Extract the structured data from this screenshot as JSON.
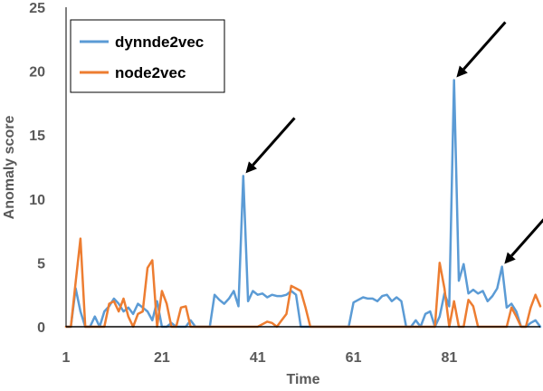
{
  "chart_data": {
    "type": "line",
    "title": "",
    "xlabel": "Time",
    "ylabel": "Anomaly score",
    "xlim": [
      1,
      100
    ],
    "ylim": [
      0,
      25
    ],
    "xticks": [
      1,
      21,
      41,
      61,
      81
    ],
    "yticks": [
      0,
      5,
      10,
      15,
      20,
      25
    ],
    "grid": false,
    "legend": {
      "position": "top-left",
      "entries": [
        "dynnde2vec",
        "node2vec"
      ]
    },
    "annotations": [
      {
        "type": "arrow",
        "target_x": 38,
        "target_y": 11.8
      },
      {
        "type": "arrow",
        "target_x": 82,
        "target_y": 19.3
      },
      {
        "type": "arrow",
        "target_x": 92,
        "target_y": 4.7
      }
    ],
    "colors": {
      "dynnde2vec": "#5b9bd5",
      "node2vec": "#ed7d31"
    },
    "series": [
      {
        "name": "dynnde2vec",
        "color": "#5b9bd5",
        "values": [
          0.0,
          0.0,
          3.0,
          1.2,
          0.0,
          0.0,
          0.8,
          0.0,
          1.2,
          1.6,
          2.2,
          1.8,
          1.2,
          1.5,
          1.0,
          1.8,
          1.5,
          1.2,
          0.5,
          2.0,
          0.0,
          0.0,
          0.3,
          0.0,
          0.0,
          0.0,
          0.5,
          0.0,
          0.0,
          0.0,
          0.0,
          2.5,
          2.1,
          1.8,
          2.2,
          2.8,
          1.6,
          11.8,
          2.0,
          2.8,
          2.5,
          2.6,
          2.3,
          2.5,
          2.4,
          2.4,
          2.5,
          2.8,
          2.5,
          0.0,
          0.0,
          0.0,
          0.0,
          0.0,
          0.0,
          0.0,
          0.0,
          0.0,
          0.0,
          0.0,
          1.9,
          2.1,
          2.3,
          2.2,
          2.2,
          2.0,
          2.4,
          2.5,
          2.0,
          2.3,
          2.0,
          0.0,
          0.0,
          0.5,
          0.0,
          1.0,
          1.2,
          0.0,
          0.8,
          2.6,
          1.6,
          19.3,
          3.6,
          4.9,
          2.6,
          2.9,
          2.6,
          2.8,
          2.0,
          2.4,
          3.0,
          4.7,
          1.5,
          1.8,
          1.2,
          0.0,
          0.0,
          0.3,
          0.5,
          0.0
        ]
      },
      {
        "name": "node2vec",
        "color": "#ed7d31",
        "values": [
          0.0,
          0.0,
          3.5,
          6.9,
          0.0,
          0.0,
          0.0,
          0.0,
          0.0,
          1.8,
          2.0,
          1.2,
          2.2,
          0.8,
          0.0,
          1.0,
          1.2,
          4.6,
          5.2,
          0.0,
          2.8,
          1.8,
          0.0,
          0.0,
          1.5,
          1.6,
          0.0,
          0.0,
          0.0,
          0.0,
          0.0,
          0.0,
          0.0,
          0.0,
          0.0,
          0.0,
          0.0,
          0.0,
          0.0,
          0.0,
          0.0,
          0.2,
          0.4,
          0.3,
          0.0,
          0.5,
          1.0,
          3.2,
          3.0,
          2.8,
          1.5,
          0.0,
          0.0,
          0.0,
          0.0,
          0.0,
          0.0,
          0.0,
          0.0,
          0.0,
          0.0,
          0.0,
          0.0,
          0.0,
          0.0,
          0.0,
          0.0,
          0.0,
          0.0,
          0.0,
          0.0,
          0.0,
          0.0,
          0.0,
          0.0,
          0.0,
          0.0,
          0.0,
          5.0,
          3.0,
          0.0,
          2.0,
          0.0,
          0.0,
          2.1,
          1.6,
          0.0,
          0.0,
          0.0,
          0.0,
          0.0,
          0.0,
          0.0,
          1.5,
          0.8,
          0.0,
          0.0,
          1.5,
          2.5,
          1.6
        ]
      }
    ]
  }
}
